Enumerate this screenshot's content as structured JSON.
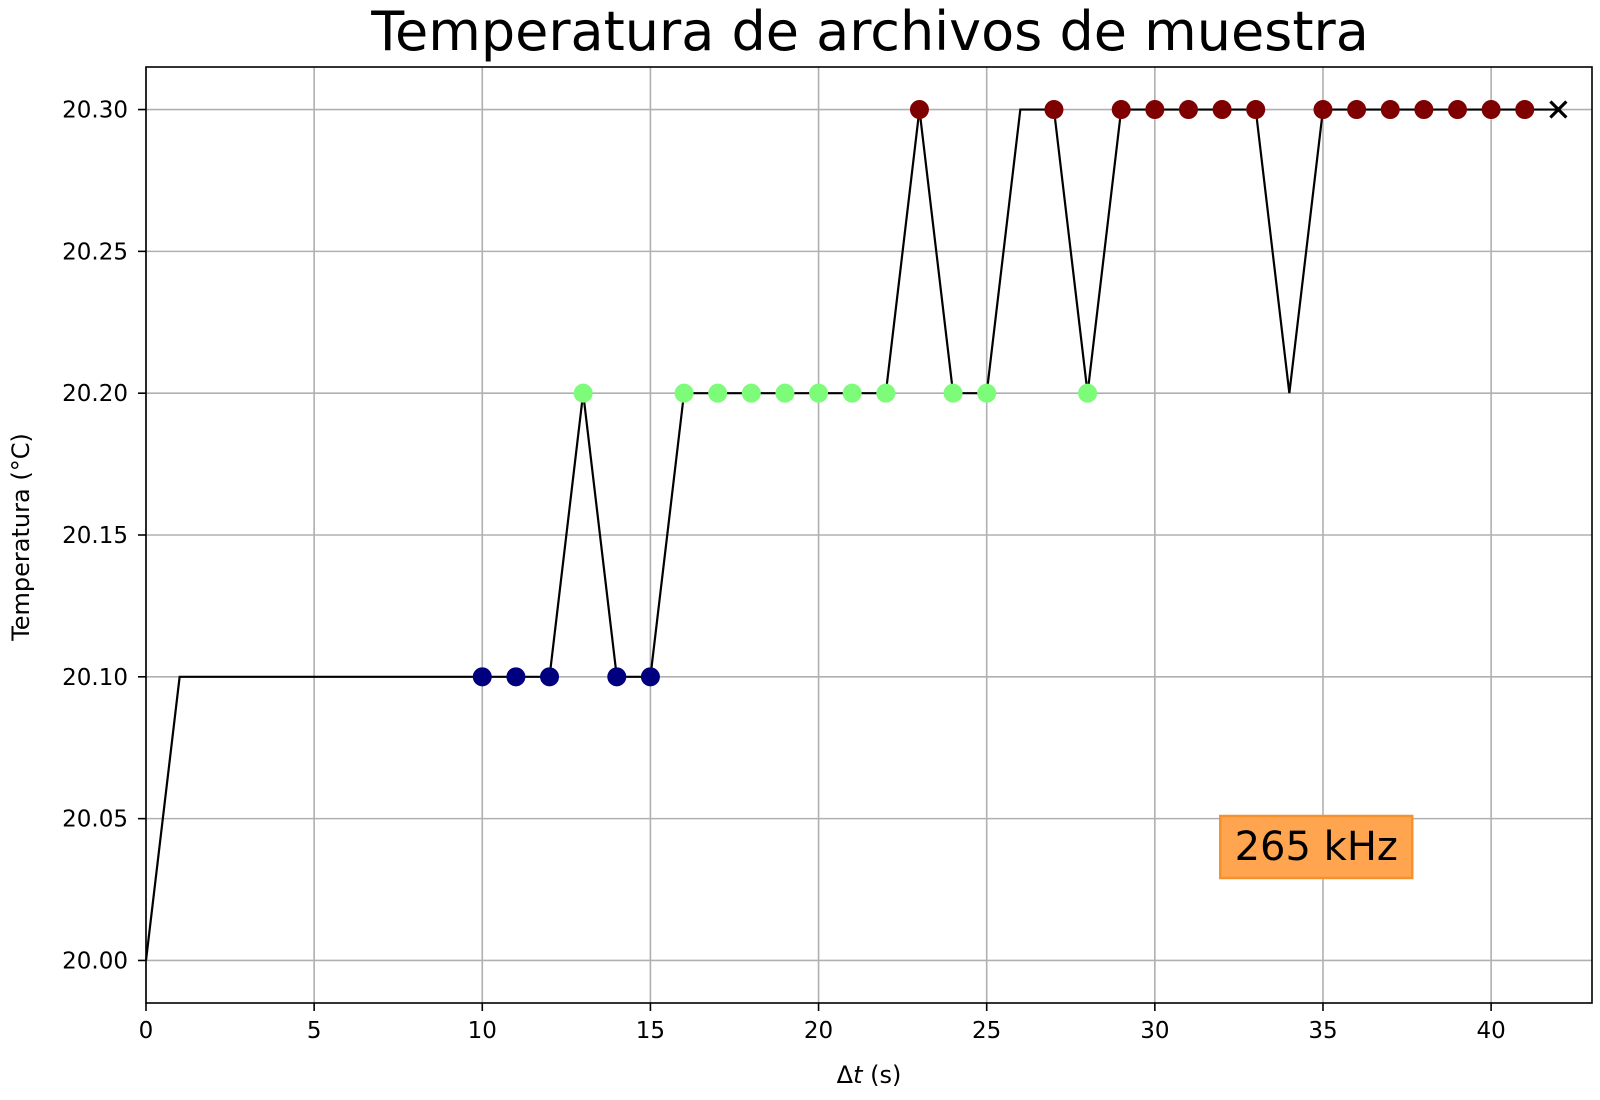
{
  "chart_data": {
    "type": "line",
    "title": "Temperatura de archivos de muestra",
    "xlabel_prefix": "Δ",
    "xlabel_var": "t",
    "xlabel_suffix": " (s)",
    "ylabel": "Temperatura (°C)",
    "xlim": [
      0,
      43
    ],
    "ylim": [
      19.985,
      20.315
    ],
    "x_ticks": [
      0,
      5,
      10,
      15,
      20,
      25,
      30,
      35,
      40
    ],
    "x_tick_labels": [
      "0",
      "5",
      "10",
      "15",
      "20",
      "25",
      "30",
      "35",
      "40"
    ],
    "y_ticks": [
      20.0,
      20.05,
      20.1,
      20.15,
      20.2,
      20.25,
      20.3
    ],
    "y_tick_labels": [
      "20.00",
      "20.05",
      "20.10",
      "20.15",
      "20.20",
      "20.25",
      "20.30"
    ],
    "grid": true,
    "line_color": "#000000",
    "series": [
      {
        "x": [
          0,
          1,
          2,
          3,
          4,
          5,
          6,
          7,
          8,
          9,
          10,
          11,
          12,
          13,
          14,
          15,
          16,
          17,
          18,
          19,
          20,
          21,
          22,
          23,
          24,
          25,
          26,
          27,
          28,
          29,
          30,
          31,
          32,
          33,
          34,
          35,
          36,
          37,
          38,
          39,
          40,
          41,
          42
        ],
        "y": [
          20.0,
          20.1,
          20.1,
          20.1,
          20.1,
          20.1,
          20.1,
          20.1,
          20.1,
          20.1,
          20.1,
          20.1,
          20.1,
          20.2,
          20.1,
          20.1,
          20.2,
          20.2,
          20.2,
          20.2,
          20.2,
          20.2,
          20.2,
          20.3,
          20.2,
          20.2,
          20.3,
          20.3,
          20.2,
          20.3,
          20.3,
          20.3,
          20.3,
          20.3,
          20.2,
          20.3,
          20.3,
          20.3,
          20.3,
          20.3,
          20.3,
          20.3,
          20.3
        ]
      }
    ],
    "markers": [
      {
        "x": 10,
        "y": 20.1,
        "color": "#00007f"
      },
      {
        "x": 11,
        "y": 20.1,
        "color": "#00007f"
      },
      {
        "x": 12,
        "y": 20.1,
        "color": "#00007f"
      },
      {
        "x": 13,
        "y": 20.2,
        "color": "#7dfc7a"
      },
      {
        "x": 14,
        "y": 20.1,
        "color": "#00007f"
      },
      {
        "x": 15,
        "y": 20.1,
        "color": "#00007f"
      },
      {
        "x": 16,
        "y": 20.2,
        "color": "#7dfc7a"
      },
      {
        "x": 17,
        "y": 20.2,
        "color": "#7dfc7a"
      },
      {
        "x": 18,
        "y": 20.2,
        "color": "#7dfc7a"
      },
      {
        "x": 19,
        "y": 20.2,
        "color": "#7dfc7a"
      },
      {
        "x": 20,
        "y": 20.2,
        "color": "#7dfc7a"
      },
      {
        "x": 21,
        "y": 20.2,
        "color": "#7dfc7a"
      },
      {
        "x": 22,
        "y": 20.2,
        "color": "#7dfc7a"
      },
      {
        "x": 23,
        "y": 20.3,
        "color": "#7f0000"
      },
      {
        "x": 24,
        "y": 20.2,
        "color": "#7dfc7a"
      },
      {
        "x": 25,
        "y": 20.2,
        "color": "#7dfc7a"
      },
      {
        "x": 27,
        "y": 20.3,
        "color": "#7f0000"
      },
      {
        "x": 28,
        "y": 20.2,
        "color": "#7dfc7a"
      },
      {
        "x": 29,
        "y": 20.3,
        "color": "#7f0000"
      },
      {
        "x": 30,
        "y": 20.3,
        "color": "#7f0000"
      },
      {
        "x": 31,
        "y": 20.3,
        "color": "#7f0000"
      },
      {
        "x": 32,
        "y": 20.3,
        "color": "#7f0000"
      },
      {
        "x": 33,
        "y": 20.3,
        "color": "#7f0000"
      },
      {
        "x": 35,
        "y": 20.3,
        "color": "#7f0000"
      },
      {
        "x": 36,
        "y": 20.3,
        "color": "#7f0000"
      },
      {
        "x": 37,
        "y": 20.3,
        "color": "#7f0000"
      },
      {
        "x": 38,
        "y": 20.3,
        "color": "#7f0000"
      },
      {
        "x": 39,
        "y": 20.3,
        "color": "#7f0000"
      },
      {
        "x": 40,
        "y": 20.3,
        "color": "#7f0000"
      },
      {
        "x": 41,
        "y": 20.3,
        "color": "#7f0000"
      }
    ],
    "end_marker": {
      "x": 42,
      "y": 20.3,
      "shape": "x",
      "color": "#000000"
    },
    "annotation": {
      "text": "265 kHz",
      "x": 34.8,
      "y": 20.04,
      "background": "#ffa54f",
      "border": "#f5922e"
    }
  }
}
